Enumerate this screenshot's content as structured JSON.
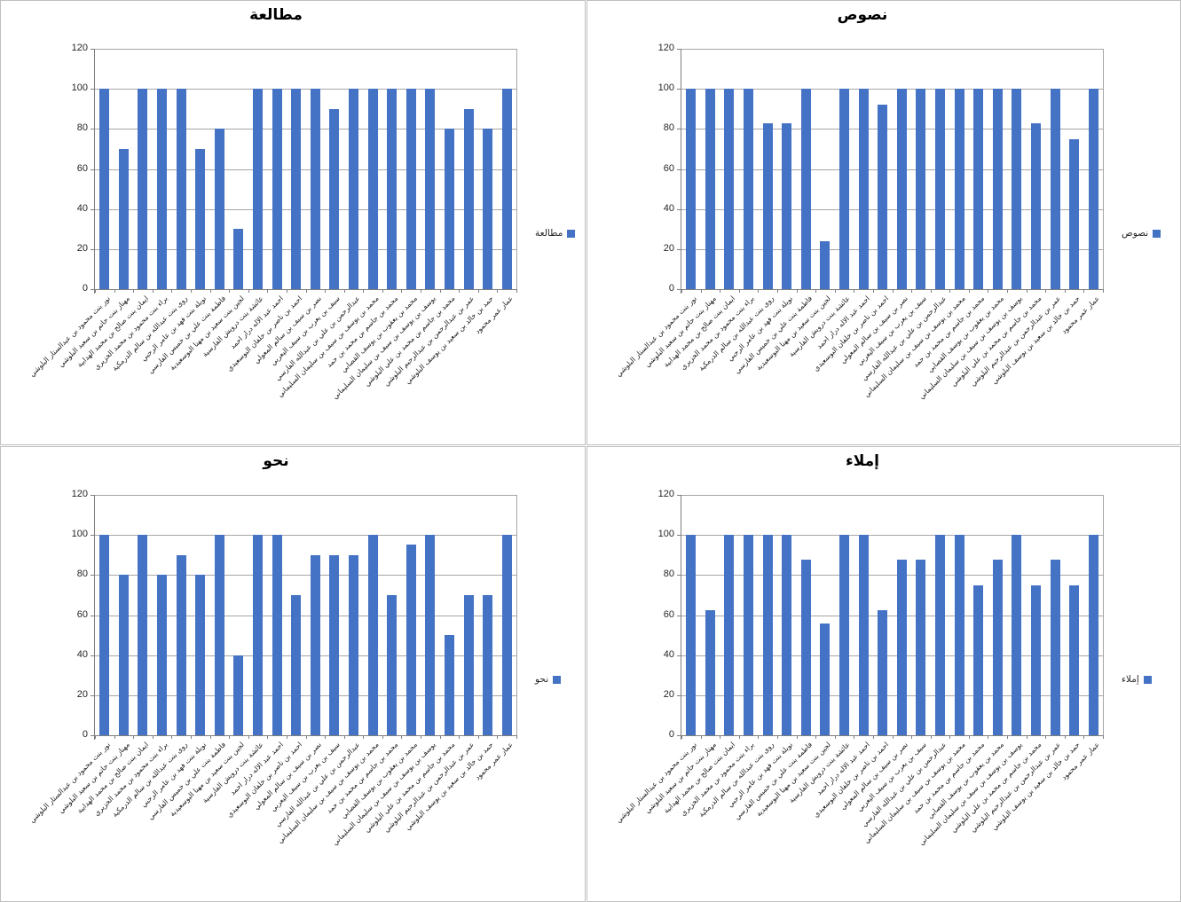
{
  "page": {
    "background": "#ffffff",
    "layout": "2x2-grid-of-bar-charts"
  },
  "colors": {
    "bar": "#4472c4",
    "gridline": "#a6a6a6",
    "axis_line": "#7f7f7f",
    "panel_border": "#bfbfbf",
    "title_text": "#000000",
    "tick_label_text": "#262626"
  },
  "students": [
    "نور بنت محمود بن عبدالستار البلوشي",
    "مهناز بنت حاتم بن سعيد البلوشي",
    "ايمان بنت صالح بن محمد الهدابية",
    "براء بنت محمود بن محمد الخزيري",
    "روى بنت عبدالله بن سالم الدرمكية",
    "نويلة بنت فهد بن عامر الرحبي",
    "فاطمة بنت علي بن خميس الفارسي",
    "لجين بنت سعيد بن مهنا البوسعيدية",
    "عائشة بنت درويش الفارسية",
    "احمد عبد الاله درار احمد",
    "احمد بن ناصر بن خلفان البوسعيدي",
    "نصر بن سيف بن سالم المعولي",
    "سيف بن يعرب بن سيف اليعربي",
    "عبدالرحمن بن علي بن عبدالله الفارسي",
    "محمد بن يوسف بن سيف بن سليمان السليماني",
    "محمد بن جاسم بن محمد بن حمد",
    "محمد بن يعقوب بن يوسف القصابي",
    "يوسف بن يوسف بن سيف بن سليمان السليماني",
    "محمد بن جاسم بن محمد بن علي البلوشي",
    "عمر بن عبدالرحمن بن عبدالرحيم البلوشي",
    "حمد بن خالد بن سعيد بن يوسف البلوشي",
    "عمار عمر محمود"
  ],
  "chart_data": [
    {
      "type": "bar",
      "position": "top-left",
      "title": "مطالعة",
      "legend": "مطالعة",
      "legend_position": "right-middle",
      "xlabel": "",
      "ylabel": "",
      "ylim": [
        0,
        120
      ],
      "yticks": [
        0,
        20,
        40,
        60,
        80,
        100,
        120
      ],
      "grid": true,
      "categories": [
        "نور بنت محمود بن عبدالستار البلوشي",
        "مهناز بنت حاتم بن سعيد البلوشي",
        "ايمان بنت صالح بن محمد الهدابية",
        "براء بنت محمود بن محمد الخزيري",
        "روى بنت عبدالله بن سالم الدرمكية",
        "نويلة بنت فهد بن عامر الرحبي",
        "فاطمة بنت علي بن خميس الفارسي",
        "لجين بنت سعيد بن مهنا البوسعيدية",
        "عائشة بنت درويش الفارسية",
        "احمد عبد الاله درار احمد",
        "احمد بن ناصر بن خلفان البوسعيدي",
        "نصر بن سيف بن سالم المعولي",
        "سيف بن يعرب بن سيف اليعربي",
        "عبدالرحمن بن علي بن عبدالله الفارسي",
        "محمد بن يوسف بن سيف بن سليمان السليماني",
        "محمد بن جاسم بن محمد بن حمد",
        "محمد بن يعقوب بن يوسف القصابي",
        "يوسف بن يوسف بن سيف بن سليمان السليماني",
        "محمد بن جاسم بن محمد بن علي البلوشي",
        "عمر بن عبدالرحمن بن عبدالرحيم البلوشي",
        "حمد بن خالد بن سعيد بن يوسف البلوشي",
        "عمار عمر محمود"
      ],
      "values": [
        100,
        70,
        100,
        100,
        100,
        70,
        80,
        30,
        100,
        100,
        100,
        100,
        90,
        100,
        100,
        100,
        100,
        100,
        80,
        90,
        80,
        100
      ]
    },
    {
      "type": "bar",
      "position": "top-right",
      "title": "نصوص",
      "legend": "نصوص",
      "legend_position": "right-middle",
      "xlabel": "",
      "ylabel": "",
      "ylim": [
        0,
        120
      ],
      "yticks": [
        0,
        20,
        40,
        60,
        80,
        100,
        120
      ],
      "grid": true,
      "categories": [
        "نور بنت محمود بن عبدالستار البلوشي",
        "مهناز بنت حاتم بن سعيد البلوشي",
        "ايمان بنت صالح بن محمد الهدابية",
        "براء بنت محمود بن محمد الخزيري",
        "روى بنت عبدالله بن سالم الدرمكية",
        "نويلة بنت فهد بن عامر الرحبي",
        "فاطمة بنت علي بن خميس الفارسي",
        "لجين بنت سعيد بن مهنا البوسعيدية",
        "عائشة بنت درويش الفارسية",
        "احمد عبد الاله درار احمد",
        "احمد بن ناصر بن خلفان البوسعيدي",
        "نصر بن سيف بن سالم المعولي",
        "سيف بن يعرب بن سيف اليعربي",
        "عبدالرحمن بن علي بن عبدالله الفارسي",
        "محمد بن يوسف بن سيف بن سليمان السليماني",
        "محمد بن جاسم بن محمد بن حمد",
        "محمد بن يعقوب بن يوسف القصابي",
        "يوسف بن يوسف بن سيف بن سليمان السليماني",
        "محمد بن جاسم بن محمد بن علي البلوشي",
        "عمر بن عبدالرحمن بن عبدالرحيم البلوشي",
        "حمد بن خالد بن سعيد بن يوسف البلوشي",
        "عمار عمر محمود"
      ],
      "values": [
        100,
        100,
        100,
        100,
        83,
        83,
        100,
        24,
        100,
        100,
        92,
        100,
        100,
        100,
        100,
        100,
        100,
        100,
        83,
        100,
        75,
        100
      ]
    },
    {
      "type": "bar",
      "position": "bottom-left",
      "title": "نحو",
      "legend": "نحو",
      "legend_position": "right-middle",
      "xlabel": "",
      "ylabel": "",
      "ylim": [
        0,
        120
      ],
      "yticks": [
        0,
        20,
        40,
        60,
        80,
        100,
        120
      ],
      "grid": true,
      "categories": [
        "نور بنت محمود بن عبدالستار البلوشي",
        "مهناز بنت حاتم بن سعيد البلوشي",
        "ايمان بنت صالح بن محمد الهدابية",
        "براء بنت محمود بن محمد الخزيري",
        "روى بنت عبدالله بن سالم الدرمكية",
        "نويلة بنت فهد بن عامر الرحبي",
        "فاطمة بنت علي بن خميس الفارسي",
        "لجين بنت سعيد بن مهنا البوسعيدية",
        "عائشة بنت درويش الفارسية",
        "احمد عبد الاله درار احمد",
        "احمد بن ناصر بن خلفان البوسعيدي",
        "نصر بن سيف بن سالم المعولي",
        "سيف بن يعرب بن سيف اليعربي",
        "عبدالرحمن بن علي بن عبدالله الفارسي",
        "محمد بن يوسف بن سيف بن سليمان السليماني",
        "محمد بن جاسم بن محمد بن حمد",
        "محمد بن يعقوب بن يوسف القصابي",
        "يوسف بن يوسف بن سيف بن سليمان السليماني",
        "محمد بن جاسم بن محمد بن علي البلوشي",
        "عمر بن عبدالرحمن بن عبدالرحيم البلوشي",
        "حمد بن خالد بن سعيد بن يوسف البلوشي",
        "عمار عمر محمود"
      ],
      "values": [
        100,
        80,
        100,
        80,
        90,
        80,
        100,
        40,
        100,
        100,
        70,
        90,
        90,
        90,
        100,
        70,
        95,
        100,
        50,
        70,
        70,
        100
      ]
    },
    {
      "type": "bar",
      "position": "bottom-right",
      "title": "إملاء",
      "legend": "إملاء",
      "legend_position": "right-middle",
      "xlabel": "",
      "ylabel": "",
      "ylim": [
        0,
        120
      ],
      "yticks": [
        0,
        20,
        40,
        60,
        80,
        100,
        120
      ],
      "grid": true,
      "categories": [
        "نور بنت محمود بن عبدالستار البلوشي",
        "مهناز بنت حاتم بن سعيد البلوشي",
        "ايمان بنت صالح بن محمد الهدابية",
        "براء بنت محمود بن محمد الخزيري",
        "روى بنت عبدالله بن سالم الدرمكية",
        "نويلة بنت فهد بن عامر الرحبي",
        "فاطمة بنت علي بن خميس الفارسي",
        "لجين بنت سعيد بن مهنا البوسعيدية",
        "عائشة بنت درويش الفارسية",
        "احمد عبد الاله درار احمد",
        "احمد بن ناصر بن خلفان البوسعيدي",
        "نصر بن سيف بن سالم المعولي",
        "سيف بن يعرب بن سيف اليعربي",
        "عبدالرحمن بن علي بن عبدالله الفارسي",
        "محمد بن يوسف بن سيف بن سليمان السليماني",
        "محمد بن جاسم بن محمد بن حمد",
        "محمد بن يعقوب بن يوسف القصابي",
        "يوسف بن يوسف بن سيف بن سليمان السليماني",
        "محمد بن جاسم بن محمد بن علي البلوشي",
        "عمر بن عبدالرحمن بن عبدالرحيم البلوشي",
        "حمد بن خالد بن سعيد بن يوسف البلوشي",
        "عمار عمر محمود"
      ],
      "values": [
        100,
        62.5,
        100,
        100,
        100,
        100,
        87.5,
        56,
        100,
        100,
        62.5,
        87.5,
        87.5,
        100,
        100,
        75,
        87.5,
        100,
        75,
        87.5,
        75,
        100
      ]
    }
  ]
}
